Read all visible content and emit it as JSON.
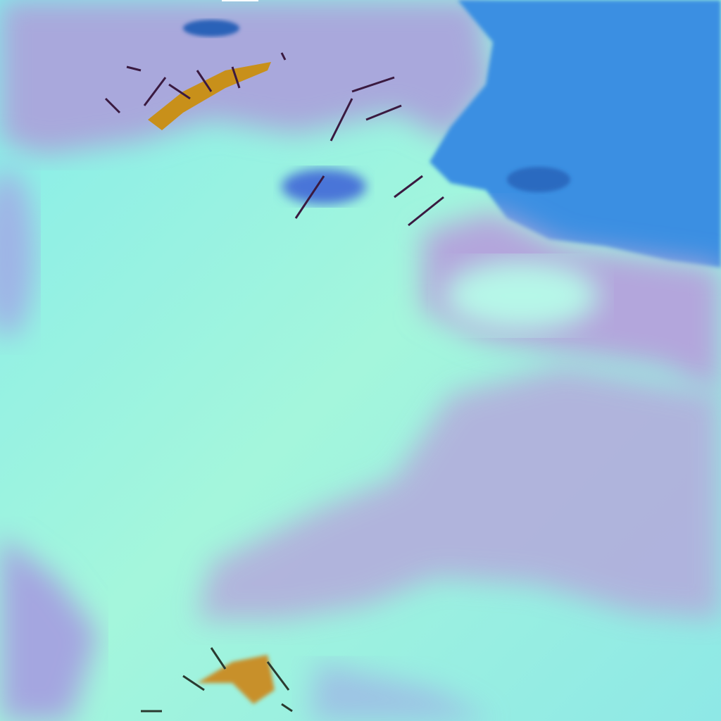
{
  "image": {
    "kind": "false-color satellite imagery",
    "colors": {
      "sea": "#3a8ee0",
      "cloud_cyan": "#8ef5e6",
      "haze_lavender": "#a9a4dc",
      "mountain_orange": "#c8901a",
      "dark_ridges": "#5a1530"
    }
  }
}
